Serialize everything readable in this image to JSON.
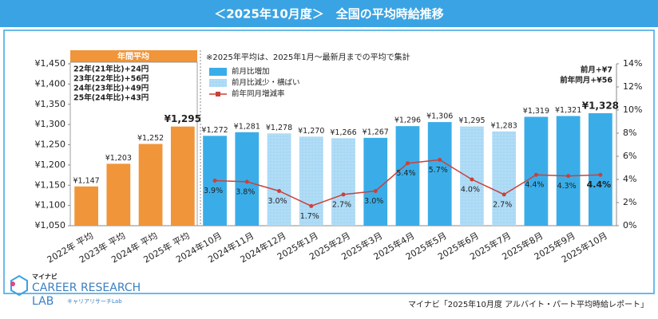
{
  "chart_data": {
    "type": "bar",
    "title": "＜2025年10月度＞　全国の平均時給推移",
    "note": "※2025年平均は、2025年1月～最新月までの平均で集計",
    "annual_header": "年間平均",
    "annual_notes": [
      "22年(21年比)+24円",
      "23年(22年比)+56円",
      "24年(23年比)+49円",
      "25年(24年比)+43円"
    ],
    "change_notes": [
      "前月+¥7",
      "前年同月+¥56"
    ],
    "source": "マイナビ「2025年10月度 アルバイト・パート平均時給レポート」",
    "logo": {
      "brand": "マイナビ",
      "name": "CAREER RESEARCH",
      "sub": "LAB",
      "jp": "キャリアリサーチLab"
    },
    "categories": [
      "2022年 平均",
      "2023年 平均",
      "2024年 平均",
      "2025年 平均",
      "2024年10月",
      "2024年11月",
      "2024年12月",
      "2025年1月",
      "2025年2月",
      "2025年3月",
      "2025年4月",
      "2025年5月",
      "2025年6月",
      "2025年7月",
      "2025年8月",
      "2025年9月",
      "2025年10月"
    ],
    "series": [
      {
        "color": "#f0953a",
        "values": [
          1147,
          1203,
          1252,
          1295,
          null,
          null,
          null,
          null,
          null,
          null,
          null,
          null,
          null,
          null,
          null,
          null,
          null
        ],
        "value_labels": [
          "¥1,147",
          "¥1,203",
          "¥1,252",
          "¥1,295",
          null,
          null,
          null,
          null,
          null,
          null,
          null,
          null,
          null,
          null,
          null,
          null,
          null
        ]
      },
      {
        "name": "前月比増加",
        "color": "#3aade8",
        "values": [
          null,
          null,
          null,
          null,
          1272,
          1281,
          null,
          null,
          null,
          1267,
          1296,
          1306,
          null,
          null,
          1319,
          1321,
          1328
        ],
        "value_labels": [
          null,
          null,
          null,
          null,
          "¥1,272",
          "¥1,281",
          null,
          null,
          null,
          "¥1,267",
          "¥1,296",
          "¥1,306",
          null,
          null,
          "¥1,319",
          "¥1,321",
          "¥1,328"
        ]
      },
      {
        "name": "前月比減少・横ばい",
        "color": "#aad9f5",
        "values": [
          null,
          null,
          null,
          null,
          null,
          null,
          1278,
          1270,
          1266,
          null,
          null,
          null,
          1295,
          1283,
          null,
          null,
          null
        ],
        "value_labels": [
          null,
          null,
          null,
          null,
          null,
          null,
          "¥1,278",
          "¥1,270",
          "¥1,266",
          null,
          null,
          null,
          "¥1,295",
          "¥1,283",
          null,
          null,
          null
        ]
      },
      {
        "name": "前年同月増減率",
        "type": "line",
        "axis": "y2",
        "color": "#c9413a",
        "values": [
          null,
          null,
          null,
          null,
          3.9,
          3.8,
          3.0,
          1.7,
          2.7,
          3.0,
          5.4,
          5.7,
          4.0,
          2.7,
          4.4,
          4.3,
          4.4
        ],
        "value_labels": [
          null,
          null,
          null,
          null,
          "3.9%",
          "3.8%",
          "3.0%",
          "1.7%",
          "2.7%",
          "3.0%",
          "5.4%",
          "5.7%",
          "4.0%",
          "2.7%",
          "4.4%",
          "4.3%",
          "4.4%"
        ]
      }
    ],
    "ylim": [
      1050,
      1450
    ],
    "yticks": [
      {
        "value": 1050,
        "label": "¥1,050"
      },
      {
        "value": 1100,
        "label": "¥1,100"
      },
      {
        "value": 1150,
        "label": "¥1,150"
      },
      {
        "value": 1200,
        "label": "¥1,200"
      },
      {
        "value": 1250,
        "label": "¥1,250"
      },
      {
        "value": 1300,
        "label": "¥1,300"
      },
      {
        "value": 1350,
        "label": "¥1,350"
      },
      {
        "value": 1400,
        "label": "¥1,400"
      },
      {
        "value": 1450,
        "label": "¥1,450"
      }
    ],
    "y2lim": [
      0,
      14
    ],
    "y2ticks": [
      {
        "value": 0,
        "label": "0%"
      },
      {
        "value": 2,
        "label": "2%"
      },
      {
        "value": 4,
        "label": "4%"
      },
      {
        "value": 6,
        "label": "6%"
      },
      {
        "value": 8,
        "label": "8%"
      },
      {
        "value": 10,
        "label": "10%"
      },
      {
        "value": 12,
        "label": "12%"
      },
      {
        "value": 14,
        "label": "14%"
      }
    ]
  }
}
